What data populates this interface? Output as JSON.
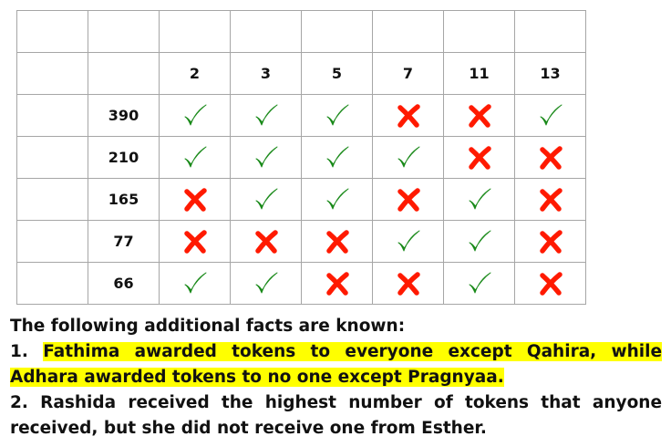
{
  "table": {
    "columns": [
      "2",
      "3",
      "5",
      "7",
      "11",
      "13"
    ],
    "rows": [
      {
        "label": "390",
        "marks": [
          "check",
          "check",
          "check",
          "cross",
          "cross",
          "check"
        ]
      },
      {
        "label": "210",
        "marks": [
          "check",
          "check",
          "check",
          "check",
          "cross",
          "cross"
        ]
      },
      {
        "label": "165",
        "marks": [
          "cross",
          "check",
          "check",
          "cross",
          "check",
          "cross"
        ]
      },
      {
        "label": "77",
        "marks": [
          "cross",
          "cross",
          "cross",
          "check",
          "check",
          "cross"
        ]
      },
      {
        "label": "66",
        "marks": [
          "check",
          "check",
          "cross",
          "cross",
          "check",
          "cross"
        ]
      }
    ],
    "colors": {
      "check": "#1a8a1a",
      "cross": "#ff1a00"
    }
  },
  "facts": {
    "heading": "The following additional facts are known:",
    "fact1_num": "1. ",
    "fact1_text": "Fathima awarded tokens to everyone except Qahira, while Adhara awarded tokens to no one except Pragnyaa.",
    "fact2": "2. Rashida received the highest number of tokens that anyone received, but she did not receive one from Esther."
  }
}
